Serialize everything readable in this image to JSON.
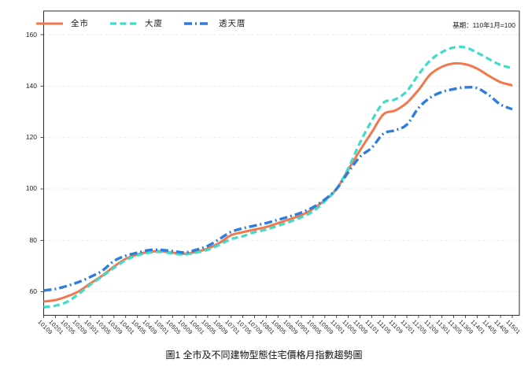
{
  "figure": {
    "title": "圖1 全市及不同建物型態住宅價格月指數趨勢圖",
    "note": "基期：110年1月=100"
  },
  "chart_data": {
    "type": "line",
    "title": "圖1 全市及不同建物型態住宅價格月指數趨勢圖",
    "note": "基期：110年1月=100",
    "grid": "horizontal-dashed",
    "legend_position": "top-left-inside",
    "ylim": [
      50,
      165
    ],
    "yticks": [
      60,
      80,
      100,
      120,
      140,
      160
    ],
    "categories": [
      "10109",
      "10201",
      "10205",
      "10209",
      "10301",
      "10305",
      "10309",
      "10401",
      "10405",
      "10409",
      "10501",
      "10505",
      "10509",
      "10601",
      "10605",
      "10609",
      "10701",
      "10705",
      "10709",
      "10801",
      "10805",
      "10809",
      "10901",
      "10905",
      "10909",
      "11001",
      "11005",
      "11009",
      "11101",
      "11105",
      "11109",
      "11201",
      "11205",
      "11209",
      "11301",
      "11305",
      "11309",
      "11401",
      "11405",
      "11409",
      "11501"
    ],
    "series": [
      {
        "name": "全市",
        "color": "#F4764B",
        "dash": "solid",
        "values": [
          56.2,
          56.8,
          58.2,
          60.2,
          63.3,
          66.3,
          69.8,
          72.8,
          74.5,
          75.5,
          75.8,
          75.2,
          74.8,
          75.5,
          76.8,
          79.0,
          82.0,
          83.2,
          84.2,
          85.2,
          86.7,
          88.2,
          89.8,
          92.3,
          95.6,
          100.0,
          107.5,
          115.0,
          122.0,
          129.0,
          130.5,
          133.5,
          138.5,
          144.5,
          147.5,
          148.8,
          148.5,
          146.8,
          144.0,
          141.5,
          140.3
        ]
      },
      {
        "name": "大廈",
        "color": "#3EDCC9",
        "dash": "dashed",
        "values": [
          54.0,
          54.6,
          56.1,
          59.2,
          62.8,
          66.0,
          69.3,
          72.3,
          74.2,
          75.2,
          75.5,
          74.9,
          74.5,
          75.2,
          76.3,
          78.3,
          80.5,
          81.6,
          83.2,
          84.2,
          85.7,
          87.2,
          89.0,
          91.3,
          95.2,
          100.0,
          108.0,
          118.0,
          126.5,
          133.5,
          134.8,
          138.0,
          144.5,
          150.0,
          153.2,
          155.0,
          155.0,
          153.0,
          150.5,
          148.2,
          147.0
        ]
      },
      {
        "name": "透天厝",
        "color": "#2E7DDE",
        "dash": "dashdot",
        "values": [
          60.5,
          61.1,
          62.3,
          63.8,
          65.8,
          68.2,
          72.0,
          74.0,
          75.2,
          76.2,
          76.3,
          75.8,
          75.3,
          76.3,
          77.8,
          80.5,
          83.3,
          84.7,
          85.7,
          86.7,
          88.0,
          89.3,
          90.8,
          92.9,
          95.9,
          100.0,
          106.5,
          112.5,
          116.0,
          121.5,
          122.8,
          125.0,
          131.5,
          135.5,
          137.7,
          138.8,
          139.5,
          139.2,
          136.5,
          132.8,
          131.0
        ]
      }
    ]
  }
}
